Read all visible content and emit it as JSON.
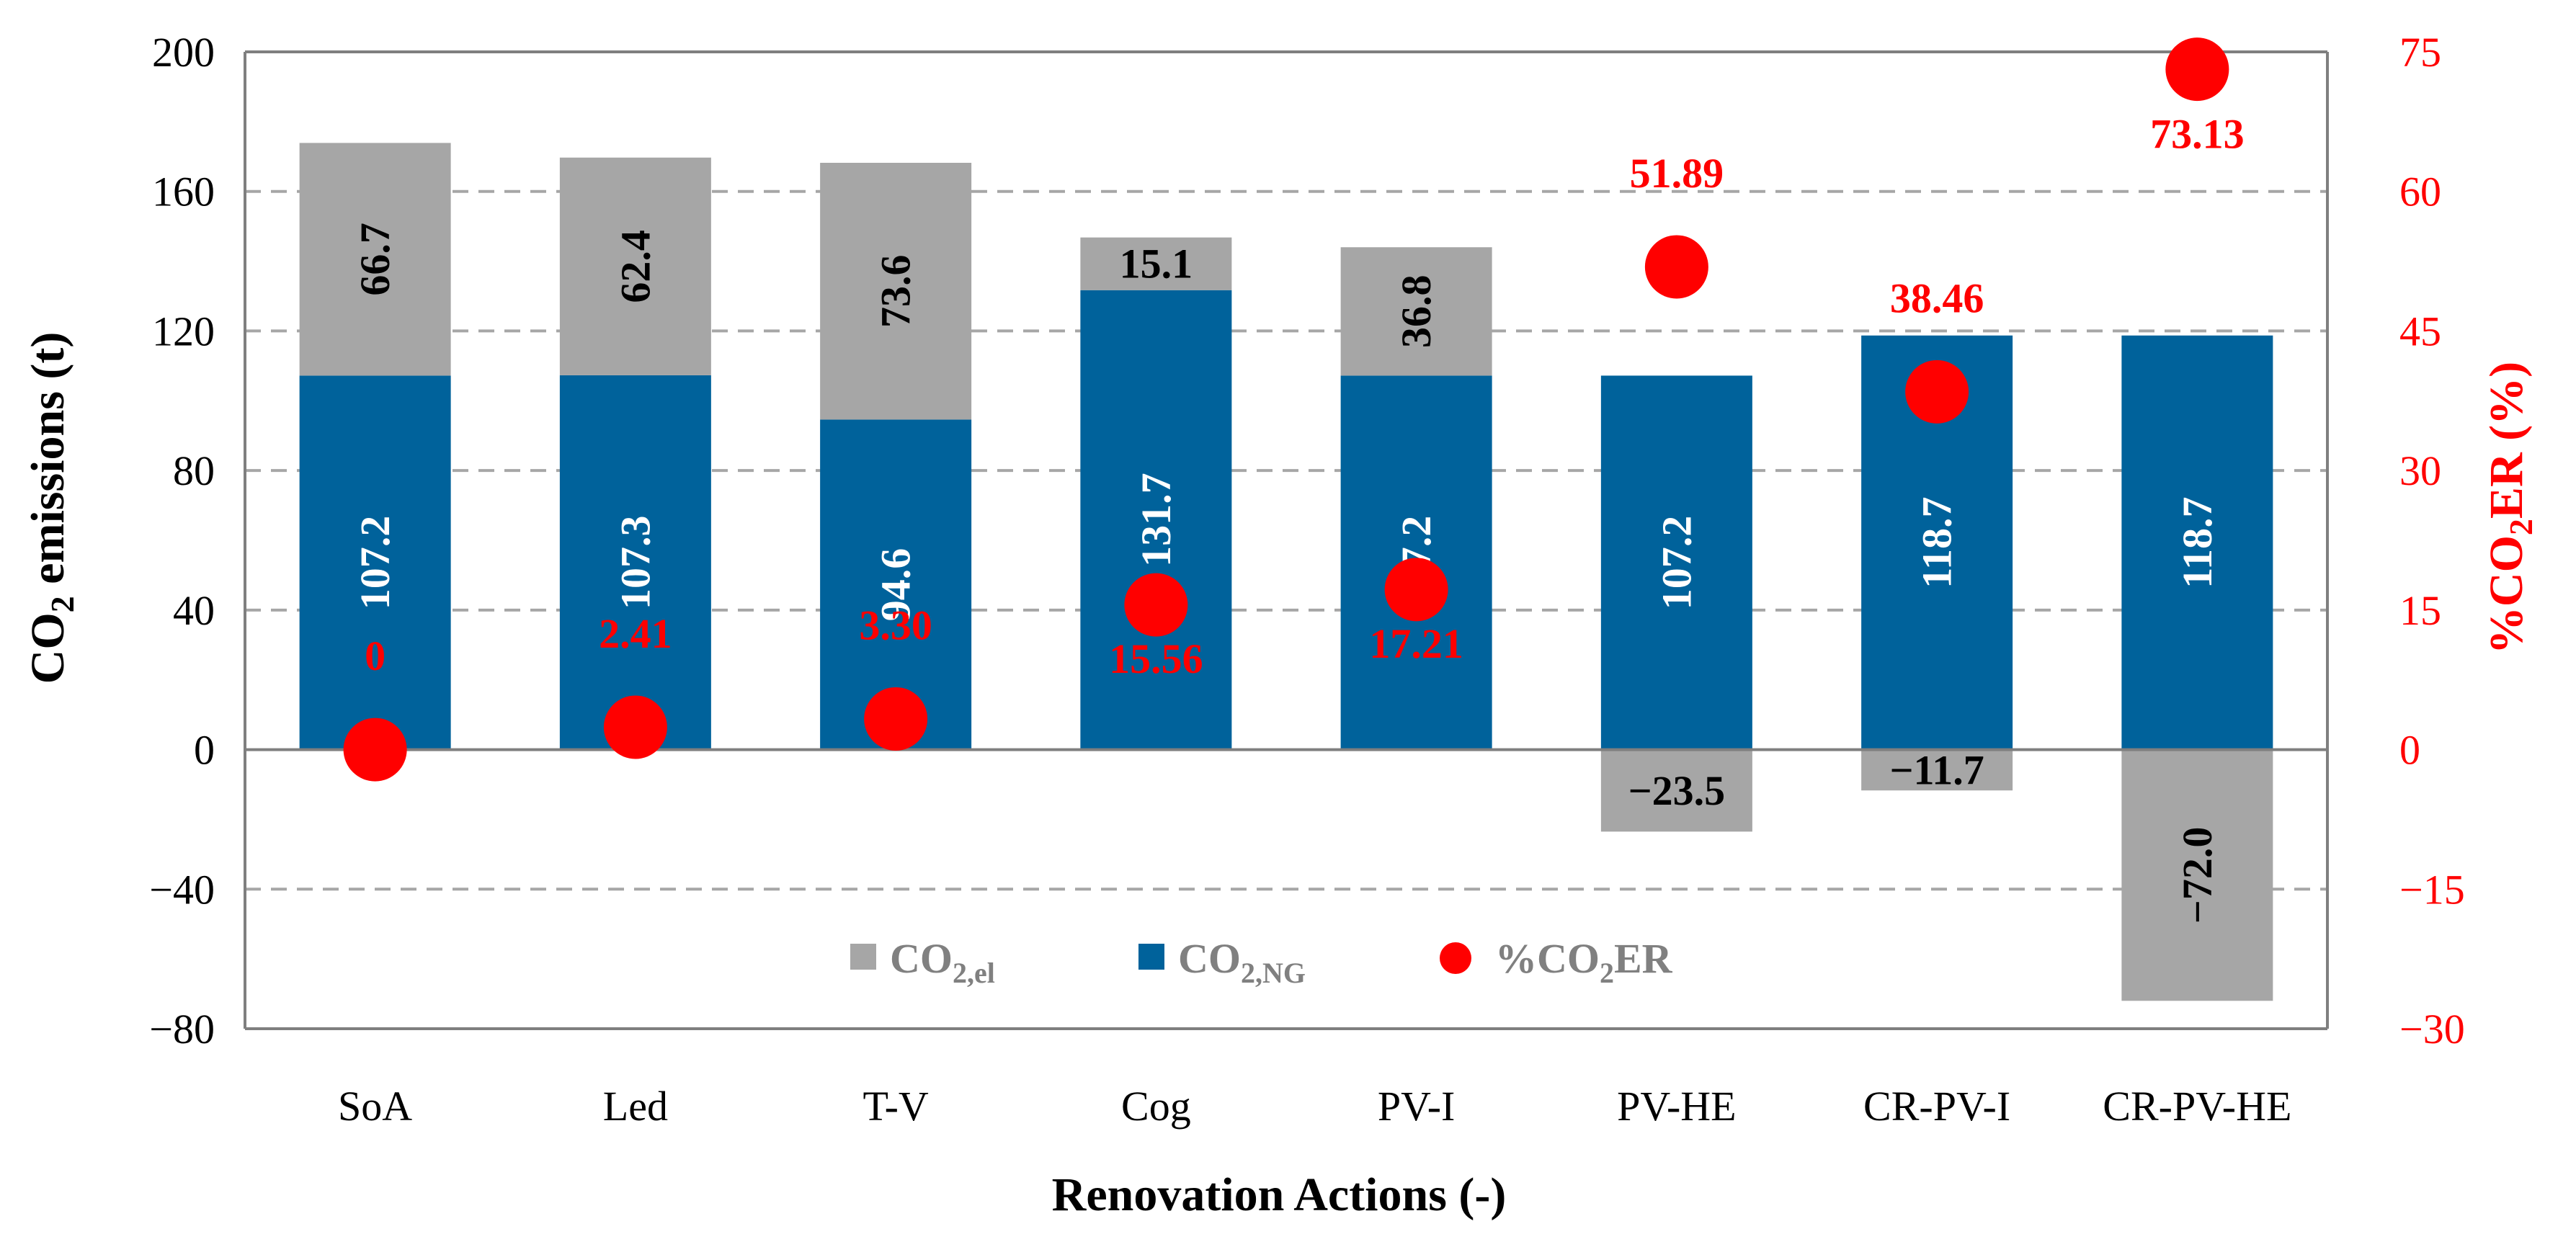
{
  "chart_data": {
    "type": "bar",
    "stacked": true,
    "categories": [
      "SoA",
      "Led",
      "T-V",
      "Cog",
      "PV-I",
      "PV-HE",
      "CR-PV-I",
      "CR-PV-HE"
    ],
    "series": [
      {
        "name": "CO2,NG",
        "legend_main": "CO",
        "legend_sub": "2,NG",
        "axis": "left",
        "color": "#00629b",
        "values": [
          107.2,
          107.3,
          94.6,
          131.7,
          107.2,
          107.2,
          118.7,
          118.7
        ],
        "labels": [
          "107.2",
          "107.3",
          "94.6",
          "131.7",
          "107.2",
          "107.2",
          "118.7",
          "118.7"
        ]
      },
      {
        "name": "CO2,el",
        "legend_main": "CO",
        "legend_sub": "2,el",
        "axis": "left",
        "color": "#a6a6a6",
        "values": [
          66.7,
          62.4,
          73.6,
          15.1,
          36.8,
          -23.5,
          -11.7,
          -72.0
        ],
        "labels": [
          "66.7",
          "62.4",
          "73.6",
          "15.1",
          "36.8",
          "−23.5",
          "−11.7",
          "−72.0"
        ]
      },
      {
        "name": "%CO2ER",
        "legend_pre": "%CO",
        "legend_sub": "2",
        "legend_post": "ER",
        "axis": "right",
        "type": "scatter",
        "color": "#ff0000",
        "values": [
          0,
          2.41,
          3.3,
          15.56,
          17.21,
          51.89,
          38.46,
          73.13
        ],
        "labels": [
          "0",
          "2.41",
          "3.30",
          "15.56",
          "17.21",
          "51.89",
          "38.46",
          "73.13"
        ]
      }
    ],
    "xlabel": "Renovation Actions (-)",
    "ylabel": {
      "pre": "CO",
      "sub": "2",
      "post": " emissions (t)"
    },
    "y2label": {
      "pre": "%CO",
      "sub": "2",
      "post": "ER (%)"
    },
    "ylim": [
      -80,
      200
    ],
    "y2lim": [
      -30,
      75
    ],
    "yticks": [
      "200",
      "160",
      "120",
      "80",
      "40",
      "0",
      "−40",
      "−80"
    ],
    "y2ticks": [
      "75",
      "60",
      "45",
      "30",
      "15",
      "0",
      "−15",
      "−30"
    ],
    "grid": true,
    "legend_position": "bottom-center inside"
  }
}
